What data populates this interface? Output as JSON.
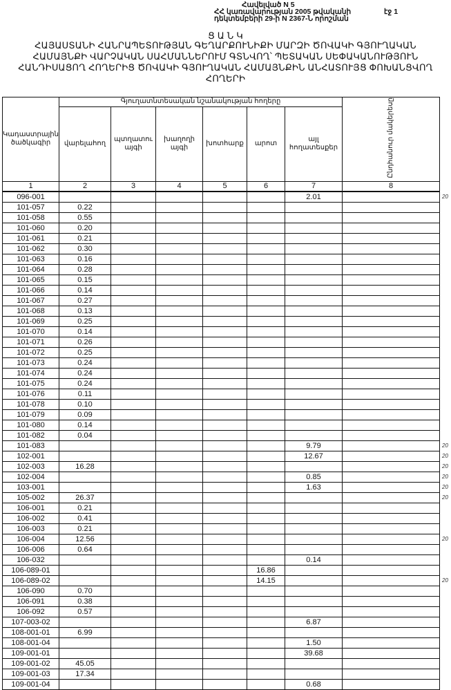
{
  "header": {
    "annex": "Հավելված N 5",
    "line2": "ՀՀ կառավարության 2005 թվականի",
    "line3": "դեկտեմբերի 29-ի N 2367-Ն որոշման",
    "page": "էջ 1"
  },
  "title": {
    "heading": "Ց Ա Ն Կ",
    "lines": [
      "ՀԱՅԱՍՏԱՆԻ ՀԱՆՐԱՊԵՏՈՒԹՅԱՆ ԳԵՂԱՐՔՈՒՆԻՔԻ ՄԱՐԶԻ ԾՈՎԱԿԻ ԳՅՈՒՂԱԿԱՆ",
      "ՀԱՄԱՅՆՔԻ ՎԱՐՉԱԿԱՆ ՍԱՀՄԱՆՆԵՐՈՒՄ ԳՏՆՎՈՂ՝ ՊԵՏԱԿԱՆ ՍԵՓԱԿԱՆՈՒԹՅՈՒՆ",
      "ՀԱՆԴԻՍԱՑՈՂ ՀՈՂԵՐԻՑ ԾՈՎԱԿԻ ԳՅՈՒՂԱԿԱՆ ՀԱՄԱՅՆՔԻՆ ԱՆՀԱՏՈՒՅՑ ՓՈԽԱՆՑՎՈՂ",
      "ՀՈՂԵՐԻ"
    ]
  },
  "table": {
    "col1_header": "Կադաստրային ծածկագիր",
    "group_header": "Գյուղատնտեսական նշանակության հողերը",
    "sub_headers": [
      "վարելահող",
      "պտղատու այգի",
      "խաղողի այգի",
      "խոտհարք",
      "արոտ",
      "այլ հողատեսքեր"
    ],
    "col8_header": "Ընդհանուր մակերեսը",
    "col_numbers": [
      "1",
      "2",
      "3",
      "4",
      "5",
      "6",
      "7",
      "8"
    ],
    "rows": [
      [
        "096-001",
        "",
        "",
        "",
        "",
        "",
        "2.01",
        ""
      ],
      [
        "101-057",
        "0.22",
        "",
        "",
        "",
        "",
        "",
        ""
      ],
      [
        "101-058",
        "0.55",
        "",
        "",
        "",
        "",
        "",
        ""
      ],
      [
        "101-060",
        "0.20",
        "",
        "",
        "",
        "",
        "",
        ""
      ],
      [
        "101-061",
        "0.21",
        "",
        "",
        "",
        "",
        "",
        ""
      ],
      [
        "101-062",
        "0.30",
        "",
        "",
        "",
        "",
        "",
        ""
      ],
      [
        "101-063",
        "0.16",
        "",
        "",
        "",
        "",
        "",
        ""
      ],
      [
        "101-064",
        "0.28",
        "",
        "",
        "",
        "",
        "",
        ""
      ],
      [
        "101-065",
        "0.15",
        "",
        "",
        "",
        "",
        "",
        ""
      ],
      [
        "101-066",
        "0.14",
        "",
        "",
        "",
        "",
        "",
        ""
      ],
      [
        "101-067",
        "0.27",
        "",
        "",
        "",
        "",
        "",
        ""
      ],
      [
        "101-068",
        "0.13",
        "",
        "",
        "",
        "",
        "",
        ""
      ],
      [
        "101-069",
        "0.25",
        "",
        "",
        "",
        "",
        "",
        ""
      ],
      [
        "101-070",
        "0.14",
        "",
        "",
        "",
        "",
        "",
        ""
      ],
      [
        "101-071",
        "0.26",
        "",
        "",
        "",
        "",
        "",
        ""
      ],
      [
        "101-072",
        "0.25",
        "",
        "",
        "",
        "",
        "",
        ""
      ],
      [
        "101-073",
        "0.24",
        "",
        "",
        "",
        "",
        "",
        ""
      ],
      [
        "101-074",
        "0.24",
        "",
        "",
        "",
        "",
        "",
        ""
      ],
      [
        "101-075",
        "0.24",
        "",
        "",
        "",
        "",
        "",
        ""
      ],
      [
        "101-076",
        "0.11",
        "",
        "",
        "",
        "",
        "",
        ""
      ],
      [
        "101-078",
        "0.10",
        "",
        "",
        "",
        "",
        "",
        ""
      ],
      [
        "101-079",
        "0.09",
        "",
        "",
        "",
        "",
        "",
        ""
      ],
      [
        "101-080",
        "0.14",
        "",
        "",
        "",
        "",
        "",
        ""
      ],
      [
        "101-082",
        "0.04",
        "",
        "",
        "",
        "",
        "",
        ""
      ],
      [
        "101-083",
        "",
        "",
        "",
        "",
        "",
        "9.79",
        ""
      ],
      [
        "102-001",
        "",
        "",
        "",
        "",
        "",
        "12.67",
        ""
      ],
      [
        "102-003",
        "16.28",
        "",
        "",
        "",
        "",
        "",
        ""
      ],
      [
        "102-004",
        "",
        "",
        "",
        "",
        "",
        "0.85",
        ""
      ],
      [
        "103-001",
        "",
        "",
        "",
        "",
        "",
        "1.63",
        ""
      ],
      [
        "105-002",
        "26.37",
        "",
        "",
        "",
        "",
        "",
        ""
      ],
      [
        "106-001",
        "0.21",
        "",
        "",
        "",
        "",
        "",
        ""
      ],
      [
        "106-002",
        "0.41",
        "",
        "",
        "",
        "",
        "",
        ""
      ],
      [
        "106-003",
        "0.21",
        "",
        "",
        "",
        "",
        "",
        ""
      ],
      [
        "106-004",
        "12.56",
        "",
        "",
        "",
        "",
        "",
        ""
      ],
      [
        "106-006",
        "0.64",
        "",
        "",
        "",
        "",
        "",
        ""
      ],
      [
        "106-032",
        "",
        "",
        "",
        "",
        "",
        "0.14",
        ""
      ],
      [
        "106-089-01",
        "",
        "",
        "",
        "",
        "16.86",
        "",
        ""
      ],
      [
        "106-089-02",
        "",
        "",
        "",
        "",
        "14.15",
        "",
        ""
      ],
      [
        "106-090",
        "0.70",
        "",
        "",
        "",
        "",
        "",
        ""
      ],
      [
        "106-091",
        "0.38",
        "",
        "",
        "",
        "",
        "",
        ""
      ],
      [
        "106-092",
        "0.57",
        "",
        "",
        "",
        "",
        "",
        ""
      ],
      [
        "107-003-02",
        "",
        "",
        "",
        "",
        "",
        "6.87",
        ""
      ],
      [
        "108-001-01",
        "6.99",
        "",
        "",
        "",
        "",
        "",
        ""
      ],
      [
        "108-001-04",
        "",
        "",
        "",
        "",
        "",
        "1.50",
        ""
      ],
      [
        "109-001-01",
        "",
        "",
        "",
        "",
        "",
        "39.68",
        ""
      ],
      [
        "109-001-02",
        "45.05",
        "",
        "",
        "",
        "",
        "",
        ""
      ],
      [
        "109-001-03",
        "17.34",
        "",
        "",
        "",
        "",
        "",
        ""
      ],
      [
        "109-001-04",
        "",
        "",
        "",
        "",
        "",
        "0.68",
        ""
      ]
    ],
    "margin_marks": [
      {
        "row": 0,
        "text": "20"
      },
      {
        "row": 24,
        "text": "20"
      },
      {
        "row": 25,
        "text": "20"
      },
      {
        "row": 26,
        "text": "20"
      },
      {
        "row": 27,
        "text": "20"
      },
      {
        "row": 28,
        "text": "20"
      },
      {
        "row": 29,
        "text": "20"
      },
      {
        "row": 33,
        "text": "20"
      },
      {
        "row": 37,
        "text": "20"
      }
    ]
  }
}
